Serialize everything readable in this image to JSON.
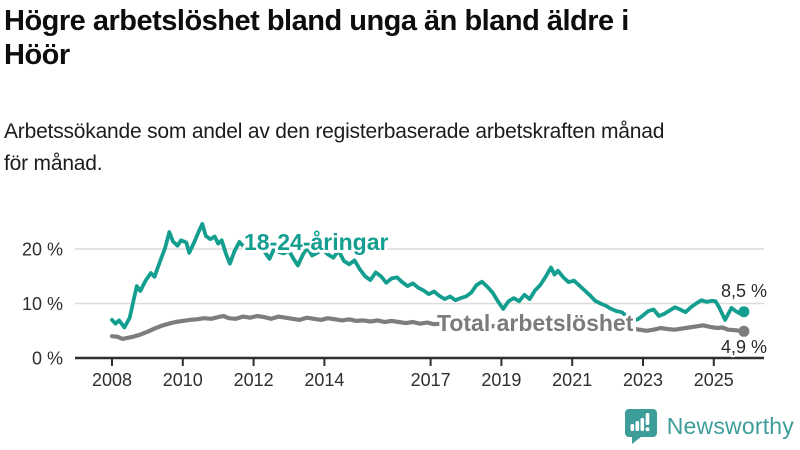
{
  "header": {
    "title_lines": [
      "Högre arbetslöshet bland unga än bland äldre i",
      "Höör"
    ],
    "subtitle_lines": [
      "Arbetssökande som andel av den registerbaserade arbetskraften månad",
      "för månad."
    ]
  },
  "branding": {
    "logo_text": "Newsworthy",
    "logo_icon": "bar-chart-speech-bubble-icon",
    "icon_color": "#3d9e99",
    "text_color": "#3d9e99"
  },
  "chart_data": {
    "type": "line",
    "title": "Högre arbetslöshet bland unga än bland äldre i Höör",
    "subtitle": "Arbetssökande som andel av den registerbaserade arbetskraften månad för månad.",
    "unit": "%",
    "xlabel": "",
    "ylabel": "",
    "xlim": [
      2007.4,
      2026.4
    ],
    "ylim": [
      0,
      27
    ],
    "grid": "horizontal",
    "legend_position": "inline-labels",
    "x_ticks": [
      2008,
      2010,
      2012,
      2014,
      2017,
      2019,
      2021,
      2023,
      2025
    ],
    "y_ticks": [
      {
        "value": 0,
        "label": "0 %"
      },
      {
        "value": 10,
        "label": "10 %"
      },
      {
        "value": 20,
        "label": "20 %"
      }
    ],
    "axis_color": "#2f2f2f",
    "gridline_color": "#dcdcdc",
    "series": [
      {
        "id": "youth",
        "name": "18-24-åringar",
        "color": "#149e8f",
        "label_color": "#149e8f",
        "stroke_width": 3.8,
        "label": {
          "x": 244,
          "y": 250
        },
        "end_label": {
          "text": "8,5 %",
          "x": 767,
          "y": 297
        },
        "end_value": 8.5,
        "points": [
          [
            2008.0,
            7.0
          ],
          [
            2008.1,
            6.3
          ],
          [
            2008.2,
            6.9
          ],
          [
            2008.35,
            5.6
          ],
          [
            2008.5,
            7.4
          ],
          [
            2008.6,
            10.3
          ],
          [
            2008.7,
            13.2
          ],
          [
            2008.8,
            12.3
          ],
          [
            2008.95,
            14.2
          ],
          [
            2009.1,
            15.6
          ],
          [
            2009.2,
            14.9
          ],
          [
            2009.35,
            17.6
          ],
          [
            2009.5,
            20.2
          ],
          [
            2009.62,
            23.1
          ],
          [
            2009.72,
            21.4
          ],
          [
            2009.85,
            20.6
          ],
          [
            2009.95,
            21.6
          ],
          [
            2010.1,
            21.2
          ],
          [
            2010.18,
            19.3
          ],
          [
            2010.32,
            21.2
          ],
          [
            2010.45,
            23.2
          ],
          [
            2010.55,
            24.6
          ],
          [
            2010.65,
            22.4
          ],
          [
            2010.78,
            21.8
          ],
          [
            2010.9,
            22.3
          ],
          [
            2011.0,
            21.0
          ],
          [
            2011.1,
            21.6
          ],
          [
            2011.22,
            19.1
          ],
          [
            2011.33,
            17.3
          ],
          [
            2011.46,
            19.6
          ],
          [
            2011.6,
            21.3
          ],
          [
            2011.75,
            20.2
          ],
          [
            2011.9,
            20.8
          ],
          [
            2012.0,
            20.0
          ],
          [
            2012.15,
            20.9
          ],
          [
            2012.3,
            19.6
          ],
          [
            2012.45,
            18.2
          ],
          [
            2012.6,
            20.3
          ],
          [
            2012.72,
            19.4
          ],
          [
            2012.85,
            19.2
          ],
          [
            2013.0,
            19.7
          ],
          [
            2013.12,
            18.3
          ],
          [
            2013.25,
            17.0
          ],
          [
            2013.4,
            19.1
          ],
          [
            2013.52,
            20.2
          ],
          [
            2013.65,
            18.8
          ],
          [
            2013.8,
            19.3
          ],
          [
            2013.95,
            19.9
          ],
          [
            2014.1,
            19.0
          ],
          [
            2014.25,
            18.4
          ],
          [
            2014.4,
            19.7
          ],
          [
            2014.55,
            17.8
          ],
          [
            2014.7,
            17.2
          ],
          [
            2014.85,
            17.9
          ],
          [
            2015.0,
            16.3
          ],
          [
            2015.15,
            15.0
          ],
          [
            2015.3,
            14.3
          ],
          [
            2015.45,
            15.7
          ],
          [
            2015.6,
            15.0
          ],
          [
            2015.75,
            13.8
          ],
          [
            2015.9,
            14.6
          ],
          [
            2016.05,
            14.8
          ],
          [
            2016.2,
            13.9
          ],
          [
            2016.35,
            13.2
          ],
          [
            2016.5,
            13.7
          ],
          [
            2016.65,
            12.9
          ],
          [
            2016.8,
            12.4
          ],
          [
            2016.95,
            11.7
          ],
          [
            2017.1,
            12.2
          ],
          [
            2017.25,
            11.4
          ],
          [
            2017.4,
            10.8
          ],
          [
            2017.55,
            11.3
          ],
          [
            2017.7,
            10.6
          ],
          [
            2017.85,
            11.0
          ],
          [
            2018.0,
            11.3
          ],
          [
            2018.15,
            12.0
          ],
          [
            2018.3,
            13.4
          ],
          [
            2018.45,
            14.0
          ],
          [
            2018.6,
            13.1
          ],
          [
            2018.75,
            12.0
          ],
          [
            2018.9,
            10.4
          ],
          [
            2019.05,
            9.0
          ],
          [
            2019.2,
            10.4
          ],
          [
            2019.35,
            11.0
          ],
          [
            2019.5,
            10.4
          ],
          [
            2019.65,
            11.6
          ],
          [
            2019.8,
            10.8
          ],
          [
            2019.95,
            12.4
          ],
          [
            2020.1,
            13.4
          ],
          [
            2020.25,
            14.9
          ],
          [
            2020.4,
            16.6
          ],
          [
            2020.5,
            15.3
          ],
          [
            2020.6,
            16.0
          ],
          [
            2020.75,
            14.8
          ],
          [
            2020.9,
            13.9
          ],
          [
            2021.05,
            14.2
          ],
          [
            2021.2,
            13.3
          ],
          [
            2021.35,
            12.4
          ],
          [
            2021.5,
            11.5
          ],
          [
            2021.65,
            10.5
          ],
          [
            2021.8,
            10.0
          ],
          [
            2021.95,
            9.6
          ],
          [
            2022.1,
            9.0
          ],
          [
            2022.25,
            8.6
          ],
          [
            2022.4,
            8.4
          ],
          [
            2022.55,
            7.6
          ],
          [
            2022.7,
            6.8
          ],
          [
            2022.85,
            7.1
          ],
          [
            2023.0,
            7.8
          ],
          [
            2023.15,
            8.6
          ],
          [
            2023.3,
            8.9
          ],
          [
            2023.45,
            7.7
          ],
          [
            2023.6,
            8.1
          ],
          [
            2023.75,
            8.7
          ],
          [
            2023.9,
            9.3
          ],
          [
            2024.05,
            8.9
          ],
          [
            2024.2,
            8.4
          ],
          [
            2024.35,
            9.3
          ],
          [
            2024.5,
            10.0
          ],
          [
            2024.65,
            10.6
          ],
          [
            2024.8,
            10.3
          ],
          [
            2024.95,
            10.5
          ],
          [
            2025.05,
            10.4
          ],
          [
            2025.15,
            9.3
          ],
          [
            2025.32,
            7.0
          ],
          [
            2025.5,
            9.2
          ],
          [
            2025.62,
            8.6
          ],
          [
            2025.72,
            8.2
          ],
          [
            2025.85,
            8.5
          ]
        ]
      },
      {
        "id": "total",
        "name": "Total arbetslöshet",
        "color": "#7d7d7d",
        "label_color": "#7b7b7b",
        "stroke_width": 4.2,
        "label": {
          "x": 437,
          "y": 331
        },
        "end_label": {
          "text": "4,9 %",
          "x": 767,
          "y": 353
        },
        "end_value": 4.9,
        "points": [
          [
            2008.0,
            4.0
          ],
          [
            2008.15,
            3.9
          ],
          [
            2008.3,
            3.5
          ],
          [
            2008.45,
            3.7
          ],
          [
            2008.6,
            3.9
          ],
          [
            2008.8,
            4.3
          ],
          [
            2009.0,
            4.8
          ],
          [
            2009.2,
            5.4
          ],
          [
            2009.4,
            5.9
          ],
          [
            2009.6,
            6.3
          ],
          [
            2009.8,
            6.6
          ],
          [
            2010.0,
            6.8
          ],
          [
            2010.2,
            7.0
          ],
          [
            2010.4,
            7.1
          ],
          [
            2010.6,
            7.3
          ],
          [
            2010.8,
            7.2
          ],
          [
            2011.0,
            7.5
          ],
          [
            2011.15,
            7.7
          ],
          [
            2011.3,
            7.3
          ],
          [
            2011.5,
            7.2
          ],
          [
            2011.7,
            7.6
          ],
          [
            2011.9,
            7.4
          ],
          [
            2012.1,
            7.7
          ],
          [
            2012.3,
            7.5
          ],
          [
            2012.5,
            7.2
          ],
          [
            2012.7,
            7.6
          ],
          [
            2012.9,
            7.4
          ],
          [
            2013.1,
            7.2
          ],
          [
            2013.3,
            7.0
          ],
          [
            2013.5,
            7.4
          ],
          [
            2013.7,
            7.2
          ],
          [
            2013.9,
            7.0
          ],
          [
            2014.1,
            7.3
          ],
          [
            2014.3,
            7.1
          ],
          [
            2014.5,
            6.9
          ],
          [
            2014.7,
            7.1
          ],
          [
            2014.9,
            6.8
          ],
          [
            2015.1,
            6.9
          ],
          [
            2015.3,
            6.7
          ],
          [
            2015.5,
            6.9
          ],
          [
            2015.7,
            6.6
          ],
          [
            2015.9,
            6.8
          ],
          [
            2016.1,
            6.6
          ],
          [
            2016.3,
            6.4
          ],
          [
            2016.5,
            6.6
          ],
          [
            2016.7,
            6.3
          ],
          [
            2016.9,
            6.5
          ],
          [
            2017.1,
            6.2
          ],
          [
            2017.3,
            6.3
          ],
          [
            2017.5,
            6.1
          ],
          [
            2017.7,
            6.2
          ],
          [
            2017.9,
            6.0
          ],
          [
            2018.1,
            6.1
          ],
          [
            2018.3,
            5.9
          ],
          [
            2018.5,
            6.0
          ],
          [
            2018.7,
            5.8
          ],
          [
            2018.9,
            5.9
          ],
          [
            2019.1,
            5.7
          ],
          [
            2019.3,
            5.8
          ],
          [
            2019.5,
            5.6
          ],
          [
            2019.7,
            5.7
          ],
          [
            2019.9,
            5.8
          ],
          [
            2020.1,
            6.0
          ],
          [
            2020.3,
            6.3
          ],
          [
            2020.5,
            6.4
          ],
          [
            2020.7,
            6.2
          ],
          [
            2020.9,
            6.1
          ],
          [
            2021.1,
            6.0
          ],
          [
            2021.3,
            5.9
          ],
          [
            2021.5,
            5.8
          ],
          [
            2021.7,
            5.6
          ],
          [
            2021.9,
            5.5
          ],
          [
            2022.1,
            5.4
          ],
          [
            2022.3,
            5.3
          ],
          [
            2022.5,
            5.2
          ],
          [
            2022.7,
            5.4
          ],
          [
            2022.9,
            5.2
          ],
          [
            2023.1,
            5.0
          ],
          [
            2023.3,
            5.2
          ],
          [
            2023.5,
            5.5
          ],
          [
            2023.7,
            5.3
          ],
          [
            2023.9,
            5.2
          ],
          [
            2024.1,
            5.4
          ],
          [
            2024.3,
            5.6
          ],
          [
            2024.5,
            5.8
          ],
          [
            2024.7,
            6.0
          ],
          [
            2024.9,
            5.7
          ],
          [
            2025.1,
            5.5
          ],
          [
            2025.25,
            5.6
          ],
          [
            2025.4,
            5.2
          ],
          [
            2025.6,
            5.1
          ],
          [
            2025.85,
            4.9
          ]
        ]
      }
    ]
  }
}
